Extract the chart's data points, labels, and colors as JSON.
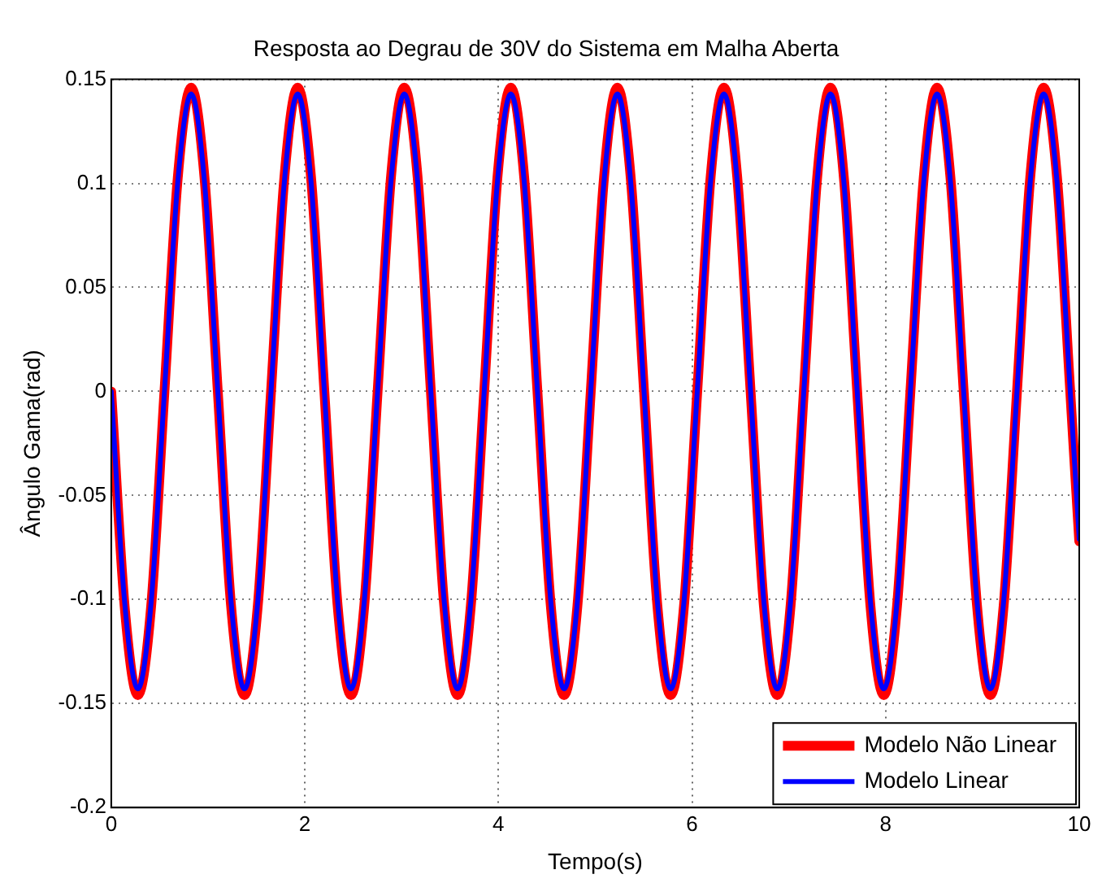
{
  "chart_data": {
    "type": "line",
    "title": "Resposta ao Degrau de 30V do Sistema em Malha Aberta",
    "xlabel": "Tempo(s)",
    "ylabel": "Ângulo Gama(rad)",
    "x": [
      0,
      0.138,
      0.275,
      0.413,
      0.55,
      0.688,
      0.826,
      0.963,
      1.101,
      1.238,
      1.376,
      1.514,
      1.651,
      1.789,
      1.926,
      2.064,
      2.202,
      2.339,
      2.477,
      2.614,
      2.752,
      2.89,
      3.027,
      3.165,
      3.302,
      3.44,
      3.578,
      3.715,
      3.853,
      3.99,
      4.128,
      4.266,
      4.403,
      4.541,
      4.678,
      4.816,
      4.954,
      5.091,
      5.229,
      5.366,
      5.504,
      5.642,
      5.779,
      5.917,
      6.054,
      6.192,
      6.33,
      6.467,
      6.605,
      6.742,
      6.88,
      7.018,
      7.155,
      7.293,
      7.43,
      7.568,
      7.706,
      7.843,
      7.981,
      8.118,
      8.256,
      8.394,
      8.531,
      8.669,
      8.806,
      8.944,
      9.082,
      9.219,
      9.357,
      9.494,
      9.632,
      9.77,
      9.907,
      10
    ],
    "series": [
      {
        "name": "Modelo Não Linear",
        "color": "#ff0000",
        "values": [
          0,
          -0.103,
          -0.146,
          -0.103,
          0,
          0.103,
          0.146,
          0.103,
          0,
          -0.103,
          -0.146,
          -0.103,
          0,
          0.103,
          0.146,
          0.103,
          0,
          -0.103,
          -0.146,
          -0.103,
          0,
          0.103,
          0.146,
          0.103,
          0,
          -0.103,
          -0.146,
          -0.103,
          0,
          0.103,
          0.146,
          0.103,
          0,
          -0.103,
          -0.146,
          -0.103,
          0,
          0.103,
          0.146,
          0.103,
          0,
          -0.103,
          -0.146,
          -0.103,
          0,
          0.103,
          0.146,
          0.103,
          0,
          -0.103,
          -0.146,
          -0.103,
          0,
          0.103,
          0.146,
          0.103,
          0,
          -0.103,
          -0.146,
          -0.103,
          0,
          0.103,
          0.146,
          0.103,
          0,
          -0.103,
          -0.146,
          -0.103,
          0,
          0.103,
          0.146,
          0.103,
          0,
          -0.072
        ]
      },
      {
        "name": "Modelo Linear",
        "color": "#0000ff",
        "values": [
          0,
          -0.101,
          -0.143,
          -0.101,
          0,
          0.101,
          0.143,
          0.101,
          0,
          -0.101,
          -0.143,
          -0.101,
          0,
          0.101,
          0.143,
          0.101,
          0,
          -0.101,
          -0.143,
          -0.101,
          0,
          0.101,
          0.143,
          0.101,
          0,
          -0.101,
          -0.143,
          -0.101,
          0,
          0.101,
          0.143,
          0.101,
          0,
          -0.101,
          -0.143,
          -0.101,
          0,
          0.101,
          0.143,
          0.101,
          0,
          -0.101,
          -0.143,
          -0.101,
          0,
          0.101,
          0.143,
          0.101,
          0,
          -0.101,
          -0.143,
          -0.101,
          0,
          0.101,
          0.143,
          0.101,
          0,
          -0.101,
          -0.143,
          -0.101,
          0,
          0.101,
          0.143,
          0.101,
          0,
          -0.101,
          -0.143,
          -0.101,
          0,
          0.101,
          0.143,
          0.101,
          0,
          -0.071
        ]
      }
    ],
    "xlim": [
      0,
      10
    ],
    "xticks": [
      0,
      2,
      4,
      6,
      8,
      10
    ],
    "ylim": [
      -0.2,
      0.15
    ],
    "yticks": [
      -0.2,
      -0.15,
      -0.1,
      -0.05,
      0,
      0.05,
      0.1,
      0.15
    ],
    "grid": true,
    "legend": "bottom right",
    "marker": "none",
    "line_style": "solid"
  }
}
